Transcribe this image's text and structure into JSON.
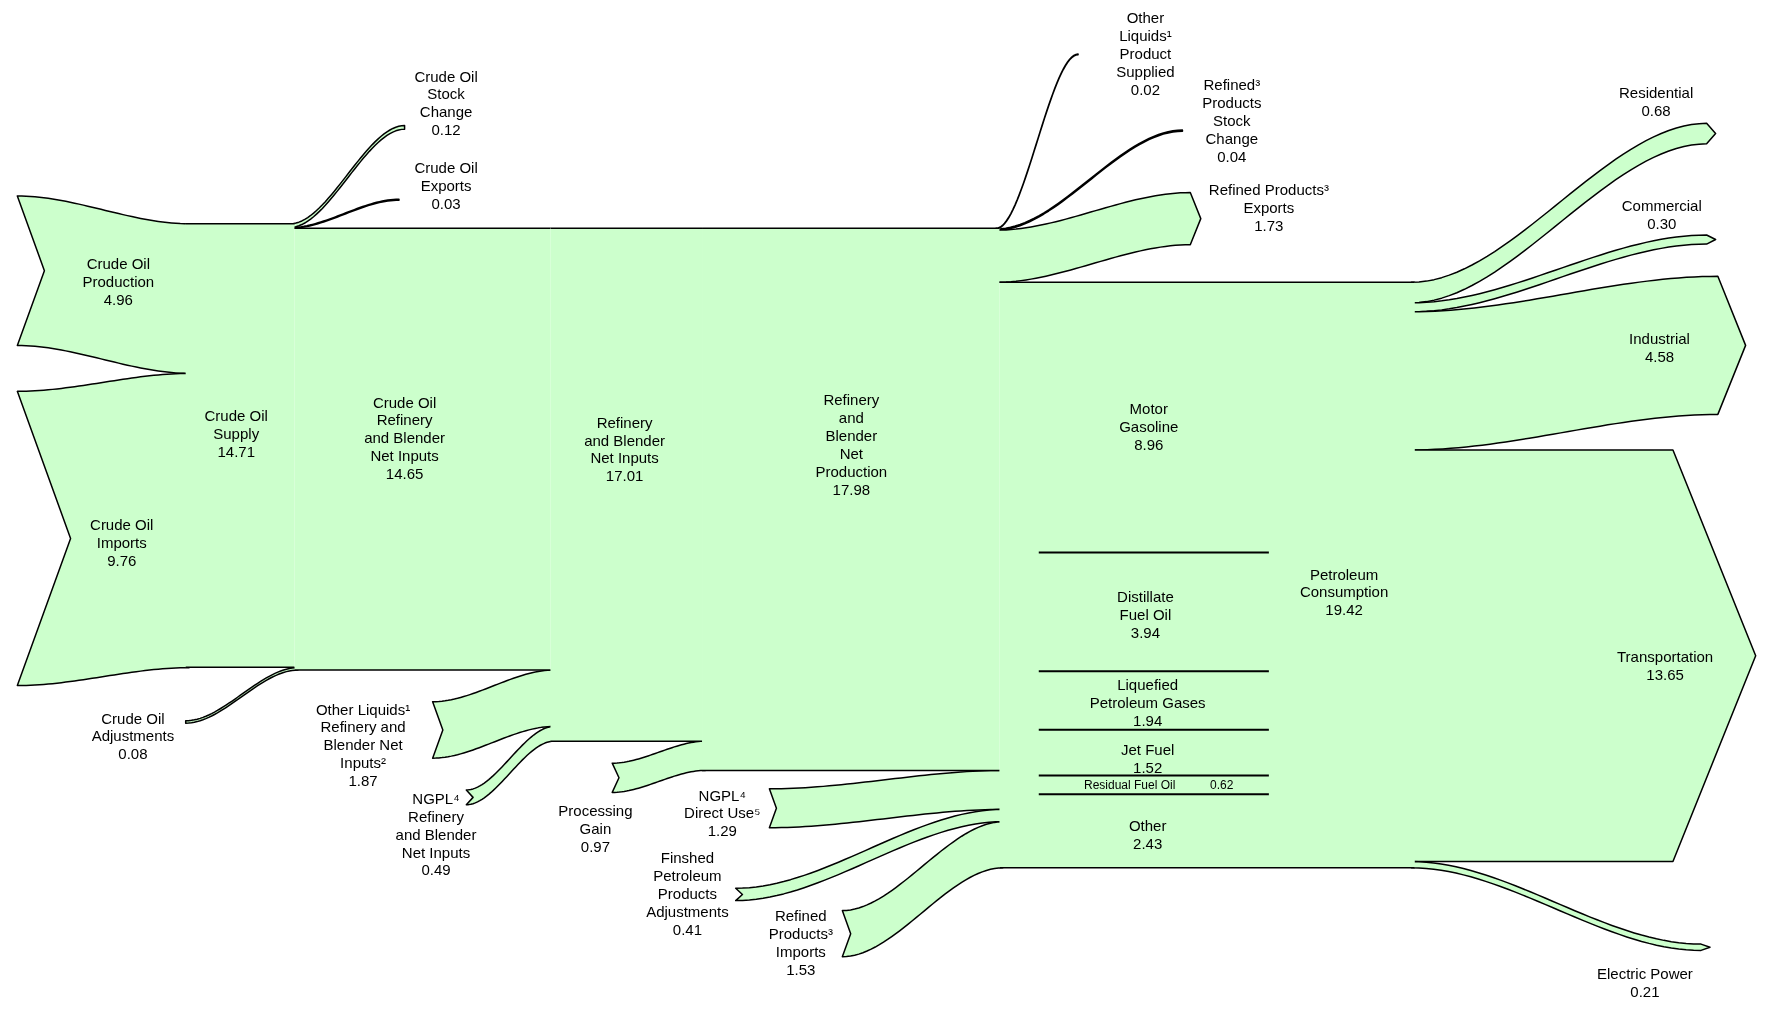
{
  "chart_data": {
    "type": "other",
    "categories": [
      "Crude Oil Production",
      "Crude Oil Imports",
      "Crude Oil Stock Change",
      "Crude Oil Exports",
      "Crude Oil Adjustments",
      "Crude Oil Supply",
      "Crude Oil Refinery and Blender Net Inputs",
      "Other Liquids¹ Refinery and Blender Net Inputs²",
      "NGPL⁴ Refinery and Blender Net Inputs",
      "Refinery and Blender Net Inputs",
      "Processing Gain",
      "Refinery and Blender Net Production",
      "Other Liquids¹ Product Supplied",
      "Refined³ Products Stock Change",
      "Refined Products³ Exports",
      "NGPL⁴ Direct Use⁵",
      "Finshed Petroleum Products Adjustments",
      "Refined Products³ Imports",
      "Motor Gasoline",
      "Distillate Fuel Oil",
      "Liquefied Petroleum Gases",
      "Jet Fuel",
      "Residual Fuel Oil",
      "Other",
      "Petroleum Consumption",
      "Residential",
      "Commercial",
      "Industrial",
      "Transportation",
      "Electric Power"
    ],
    "series": [
      {
        "color": "#ccffcc",
        "values": [
          4.96,
          9.76,
          0.12,
          0.03,
          0.08,
          14.71,
          14.65,
          1.87,
          0.49,
          17.01,
          0.97,
          17.98,
          0.02,
          0.04,
          1.73,
          1.29,
          0.41,
          1.53,
          8.96,
          3.94,
          1.94,
          1.52,
          0.62,
          2.43,
          19.42,
          0.68,
          0.3,
          4.58,
          13.65,
          0.21
        ],
        "value_labels": [
          "4.96",
          "9.76",
          "0.12",
          "0.03",
          "0.08",
          "14.71",
          "14.65",
          "1.87",
          "0.49",
          "17.01",
          "0.97",
          "17.98",
          "0.02",
          "0.04",
          "1.73",
          "1.29",
          "0.41",
          "1.53",
          "8.96",
          "3.94",
          "1.94",
          "1.52",
          "0.62",
          "2.43",
          "19.42",
          "0.68",
          "0.30",
          "4.58",
          "13.65",
          "0.21"
        ]
      }
    ]
  }
}
